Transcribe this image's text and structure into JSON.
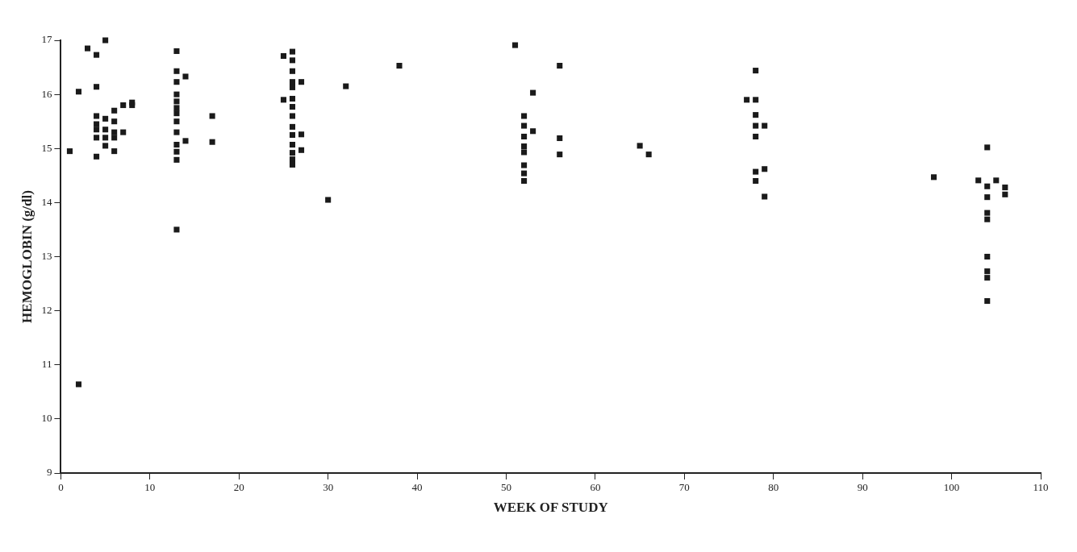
{
  "chart_data": {
    "type": "scatter",
    "xlabel": "WEEK OF STUDY",
    "ylabel": "HEMOGLOBIN (g/dl)",
    "xlim": [
      0,
      110
    ],
    "xticks": [
      0,
      10,
      20,
      30,
      40,
      50,
      60,
      70,
      80,
      90,
      100,
      110
    ],
    "ylim": [
      9,
      17
    ],
    "yticks": [
      9,
      10,
      11,
      12,
      13,
      14,
      15,
      16,
      17
    ],
    "grid": false,
    "legend": false,
    "marker": "square",
    "series": [
      {
        "color": "#1a1a1a",
        "x": [
          1,
          2,
          2,
          3,
          4,
          5,
          4,
          4,
          4,
          4,
          4,
          4,
          5,
          5,
          5,
          5,
          6,
          6,
          6,
          6,
          6,
          7,
          7,
          8,
          8,
          13,
          13,
          13,
          13,
          13,
          13,
          13,
          13,
          13,
          13,
          13,
          13,
          13,
          14,
          14,
          17,
          17,
          26,
          26,
          26,
          26,
          26,
          26,
          26,
          26,
          26,
          26,
          26,
          26,
          26,
          26,
          25,
          25,
          27,
          27,
          27,
          30,
          32,
          38,
          51,
          56,
          53,
          52,
          52,
          52,
          52,
          52,
          52,
          52,
          52,
          53,
          56,
          56,
          65,
          66,
          78,
          77,
          78,
          78,
          78,
          79,
          78,
          78,
          79,
          78,
          79,
          98,
          103,
          104,
          104,
          104,
          104,
          104,
          104,
          104,
          104,
          104,
          105,
          106,
          106
        ],
        "values": [
          14.95,
          16.05,
          10.64,
          16.85,
          16.73,
          17,
          16.14,
          15.6,
          15.45,
          15.35,
          15.2,
          14.85,
          15.55,
          15.35,
          15.2,
          15.05,
          15.7,
          15.5,
          15.3,
          15.2,
          14.95,
          15.8,
          15.3,
          15.85,
          15.8,
          16.8,
          16.43,
          16.23,
          16.0,
          15.87,
          15.75,
          15.65,
          15.5,
          15.3,
          15.07,
          14.94,
          14.79,
          13.5,
          16.33,
          15.14,
          15.6,
          15.12,
          16.79,
          16.63,
          16.43,
          16.23,
          16.13,
          15.92,
          15.77,
          15.6,
          15.4,
          15.25,
          15.07,
          14.92,
          14.8,
          14.7,
          16.71,
          15.9,
          16.23,
          15.26,
          14.97,
          14.05,
          16.15,
          16.53,
          16.91,
          16.53,
          16.03,
          15.6,
          15.42,
          15.22,
          15.04,
          14.93,
          14.69,
          14.54,
          14.4,
          15.32,
          15.19,
          14.89,
          15.05,
          14.89,
          16.44,
          15.9,
          15.9,
          15.62,
          15.42,
          15.42,
          15.22,
          14.57,
          14.62,
          14.4,
          14.11,
          14.47,
          14.41,
          15.02,
          14.3,
          14.1,
          13.81,
          13.69,
          13.0,
          12.73,
          12.61,
          12.18,
          14.41,
          14.28,
          14.15
        ]
      }
    ]
  }
}
